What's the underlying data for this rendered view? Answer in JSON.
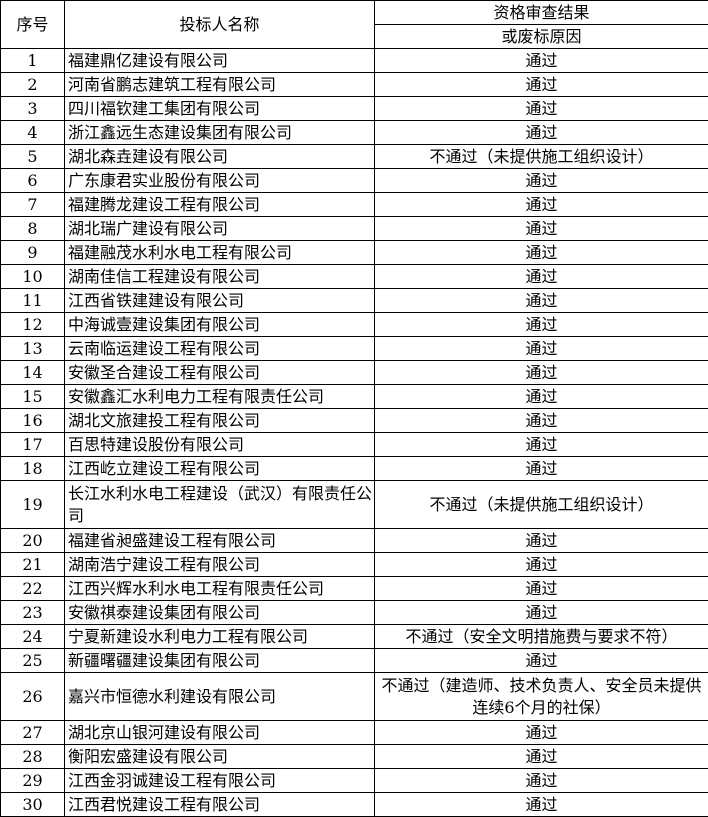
{
  "headers": {
    "index": "序号",
    "bidder": "投标人名称",
    "result_line1": "资格审查结果",
    "result_line2": "或废标原因"
  },
  "rows": [
    {
      "no": "1",
      "name": "福建鼎亿建设有限公司",
      "result": "通过"
    },
    {
      "no": "2",
      "name": "河南省鹏志建筑工程有限公司",
      "result": "通过"
    },
    {
      "no": "3",
      "name": "四川福钦建工集团有限公司",
      "result": "通过"
    },
    {
      "no": "4",
      "name": "浙江鑫远生态建设集团有限公司",
      "result": "通过"
    },
    {
      "no": "5",
      "name": "湖北森垚建设有限公司",
      "result": "不通过（未提供施工组织设计）"
    },
    {
      "no": "6",
      "name": "广东康君实业股份有限公司",
      "result": "通过"
    },
    {
      "no": "7",
      "name": "福建腾龙建设工程有限公司",
      "result": "通过"
    },
    {
      "no": "8",
      "name": "湖北瑞广建设有限公司",
      "result": "通过"
    },
    {
      "no": "9",
      "name": "福建融茂水利水电工程有限公司",
      "result": "通过"
    },
    {
      "no": "10",
      "name": "湖南佳信工程建设有限公司",
      "result": "通过"
    },
    {
      "no": "11",
      "name": "江西省铁建建设有限公司",
      "result": "通过"
    },
    {
      "no": "12",
      "name": "中海诚壹建设集团有限公司",
      "result": "通过"
    },
    {
      "no": "13",
      "name": "云南临运建设工程有限公司",
      "result": "通过"
    },
    {
      "no": "14",
      "name": "安徽圣合建设工程有限公司",
      "result": "通过"
    },
    {
      "no": "15",
      "name": "安徽鑫汇水利电力工程有限责任公司",
      "result": "通过"
    },
    {
      "no": "16",
      "name": "湖北文旅建投工程有限公司",
      "result": "通过"
    },
    {
      "no": "17",
      "name": "百思特建设股份有限公司",
      "result": "通过"
    },
    {
      "no": "18",
      "name": "江西屹立建设工程有限公司",
      "result": "通过"
    },
    {
      "no": "19",
      "name": "长江水利水电工程建设（武汉）有限责任公司",
      "result": "不通过（未提供施工组织设计）"
    },
    {
      "no": "20",
      "name": "福建省昶盛建设工程有限公司",
      "result": "通过"
    },
    {
      "no": "21",
      "name": "湖南浩宁建设工程有限公司",
      "result": "通过"
    },
    {
      "no": "22",
      "name": "江西兴辉水利水电工程有限责任公司",
      "result": "通过"
    },
    {
      "no": "23",
      "name": "安徽祺泰建设集团有限公司",
      "result": "通过"
    },
    {
      "no": "24",
      "name": "宁夏新建设水利电力工程有限公司",
      "result": "不通过（安全文明措施费与要求不符）"
    },
    {
      "no": "25",
      "name": "新疆曙疆建设集团有限公司",
      "result": "通过"
    },
    {
      "no": "26",
      "name": "嘉兴市恒德水利建设有限公司",
      "result": "不通过（建造师、技术负责人、安全员未提供连续6个月的社保）"
    },
    {
      "no": "27",
      "name": "湖北京山银河建设有限公司",
      "result": "通过"
    },
    {
      "no": "28",
      "name": "衡阳宏盛建设有限公司",
      "result": "通过"
    },
    {
      "no": "29",
      "name": "江西金羽诚建设工程有限公司",
      "result": "通过"
    },
    {
      "no": "30",
      "name": "江西君悦建设工程有限公司",
      "result": "通过"
    }
  ]
}
